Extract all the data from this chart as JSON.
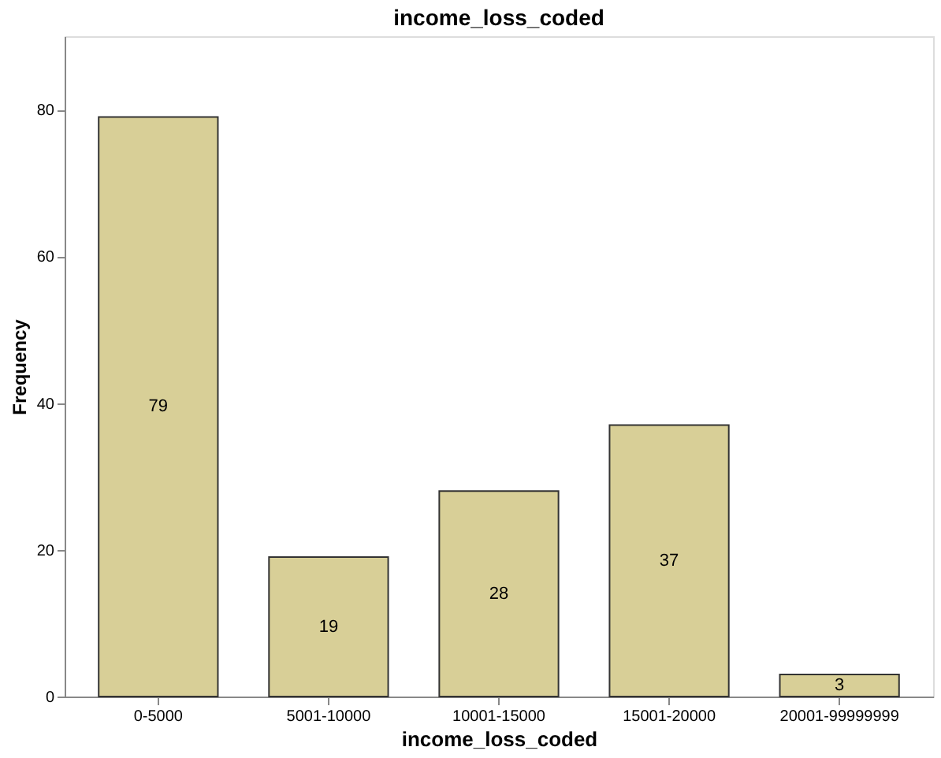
{
  "chart_data": {
    "type": "bar",
    "title": "income_loss_coded",
    "xlabel": "income_loss_coded",
    "ylabel": "Frequency",
    "categories": [
      "0-5000",
      "5001-10000",
      "10001-15000",
      "15001-20000",
      "20001-99999999"
    ],
    "values": [
      79,
      19,
      28,
      37,
      3
    ],
    "color": "#d8cf97",
    "ylim": [
      0,
      90
    ],
    "yticks": [
      0,
      20,
      40,
      60,
      80
    ],
    "grid": false,
    "data_labels": true
  }
}
